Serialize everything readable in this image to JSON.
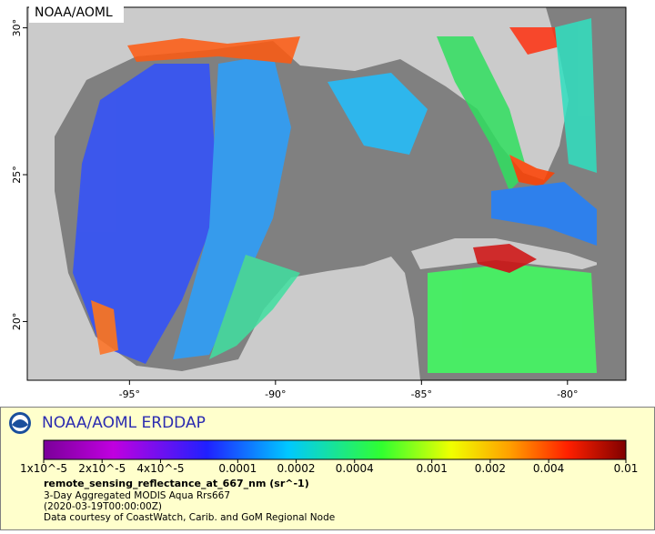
{
  "map": {
    "corner_label": "NOAA/AOML",
    "xlim": [
      -98.5,
      -78
    ],
    "ylim": [
      18,
      30.7
    ],
    "xticks": [
      {
        "value": -95,
        "label": "-95°"
      },
      {
        "value": -90,
        "label": "-90°"
      },
      {
        "value": -85,
        "label": "-85°"
      },
      {
        "value": -80,
        "label": "-80°"
      }
    ],
    "yticks": [
      {
        "value": 20,
        "label": "20°"
      },
      {
        "value": 25,
        "label": "25°"
      },
      {
        "value": 30,
        "label": "30°"
      }
    ]
  },
  "legend": {
    "title": "NOAA/AOML ERDDAP",
    "scale": "log",
    "range": [
      1e-05,
      0.01
    ],
    "ticks": [
      {
        "value": 1e-05,
        "label": "1x10^-5"
      },
      {
        "value": 2e-05,
        "label": "2x10^-5"
      },
      {
        "value": 4e-05,
        "label": "4x10^-5"
      },
      0.0001,
      0.0002,
      0.0004,
      0.001,
      0.002,
      0.004,
      0.01
    ],
    "variable": "remote_sensing_reflectance_at_667_nm (sr^-1)",
    "lines": [
      "3-Day Aggregated MODIS Aqua Rrs667",
      "(2020-03-19T00:00:00Z)",
      "Data courtesy of CoastWatch, Carib. and GoM Regional Node"
    ]
  }
}
